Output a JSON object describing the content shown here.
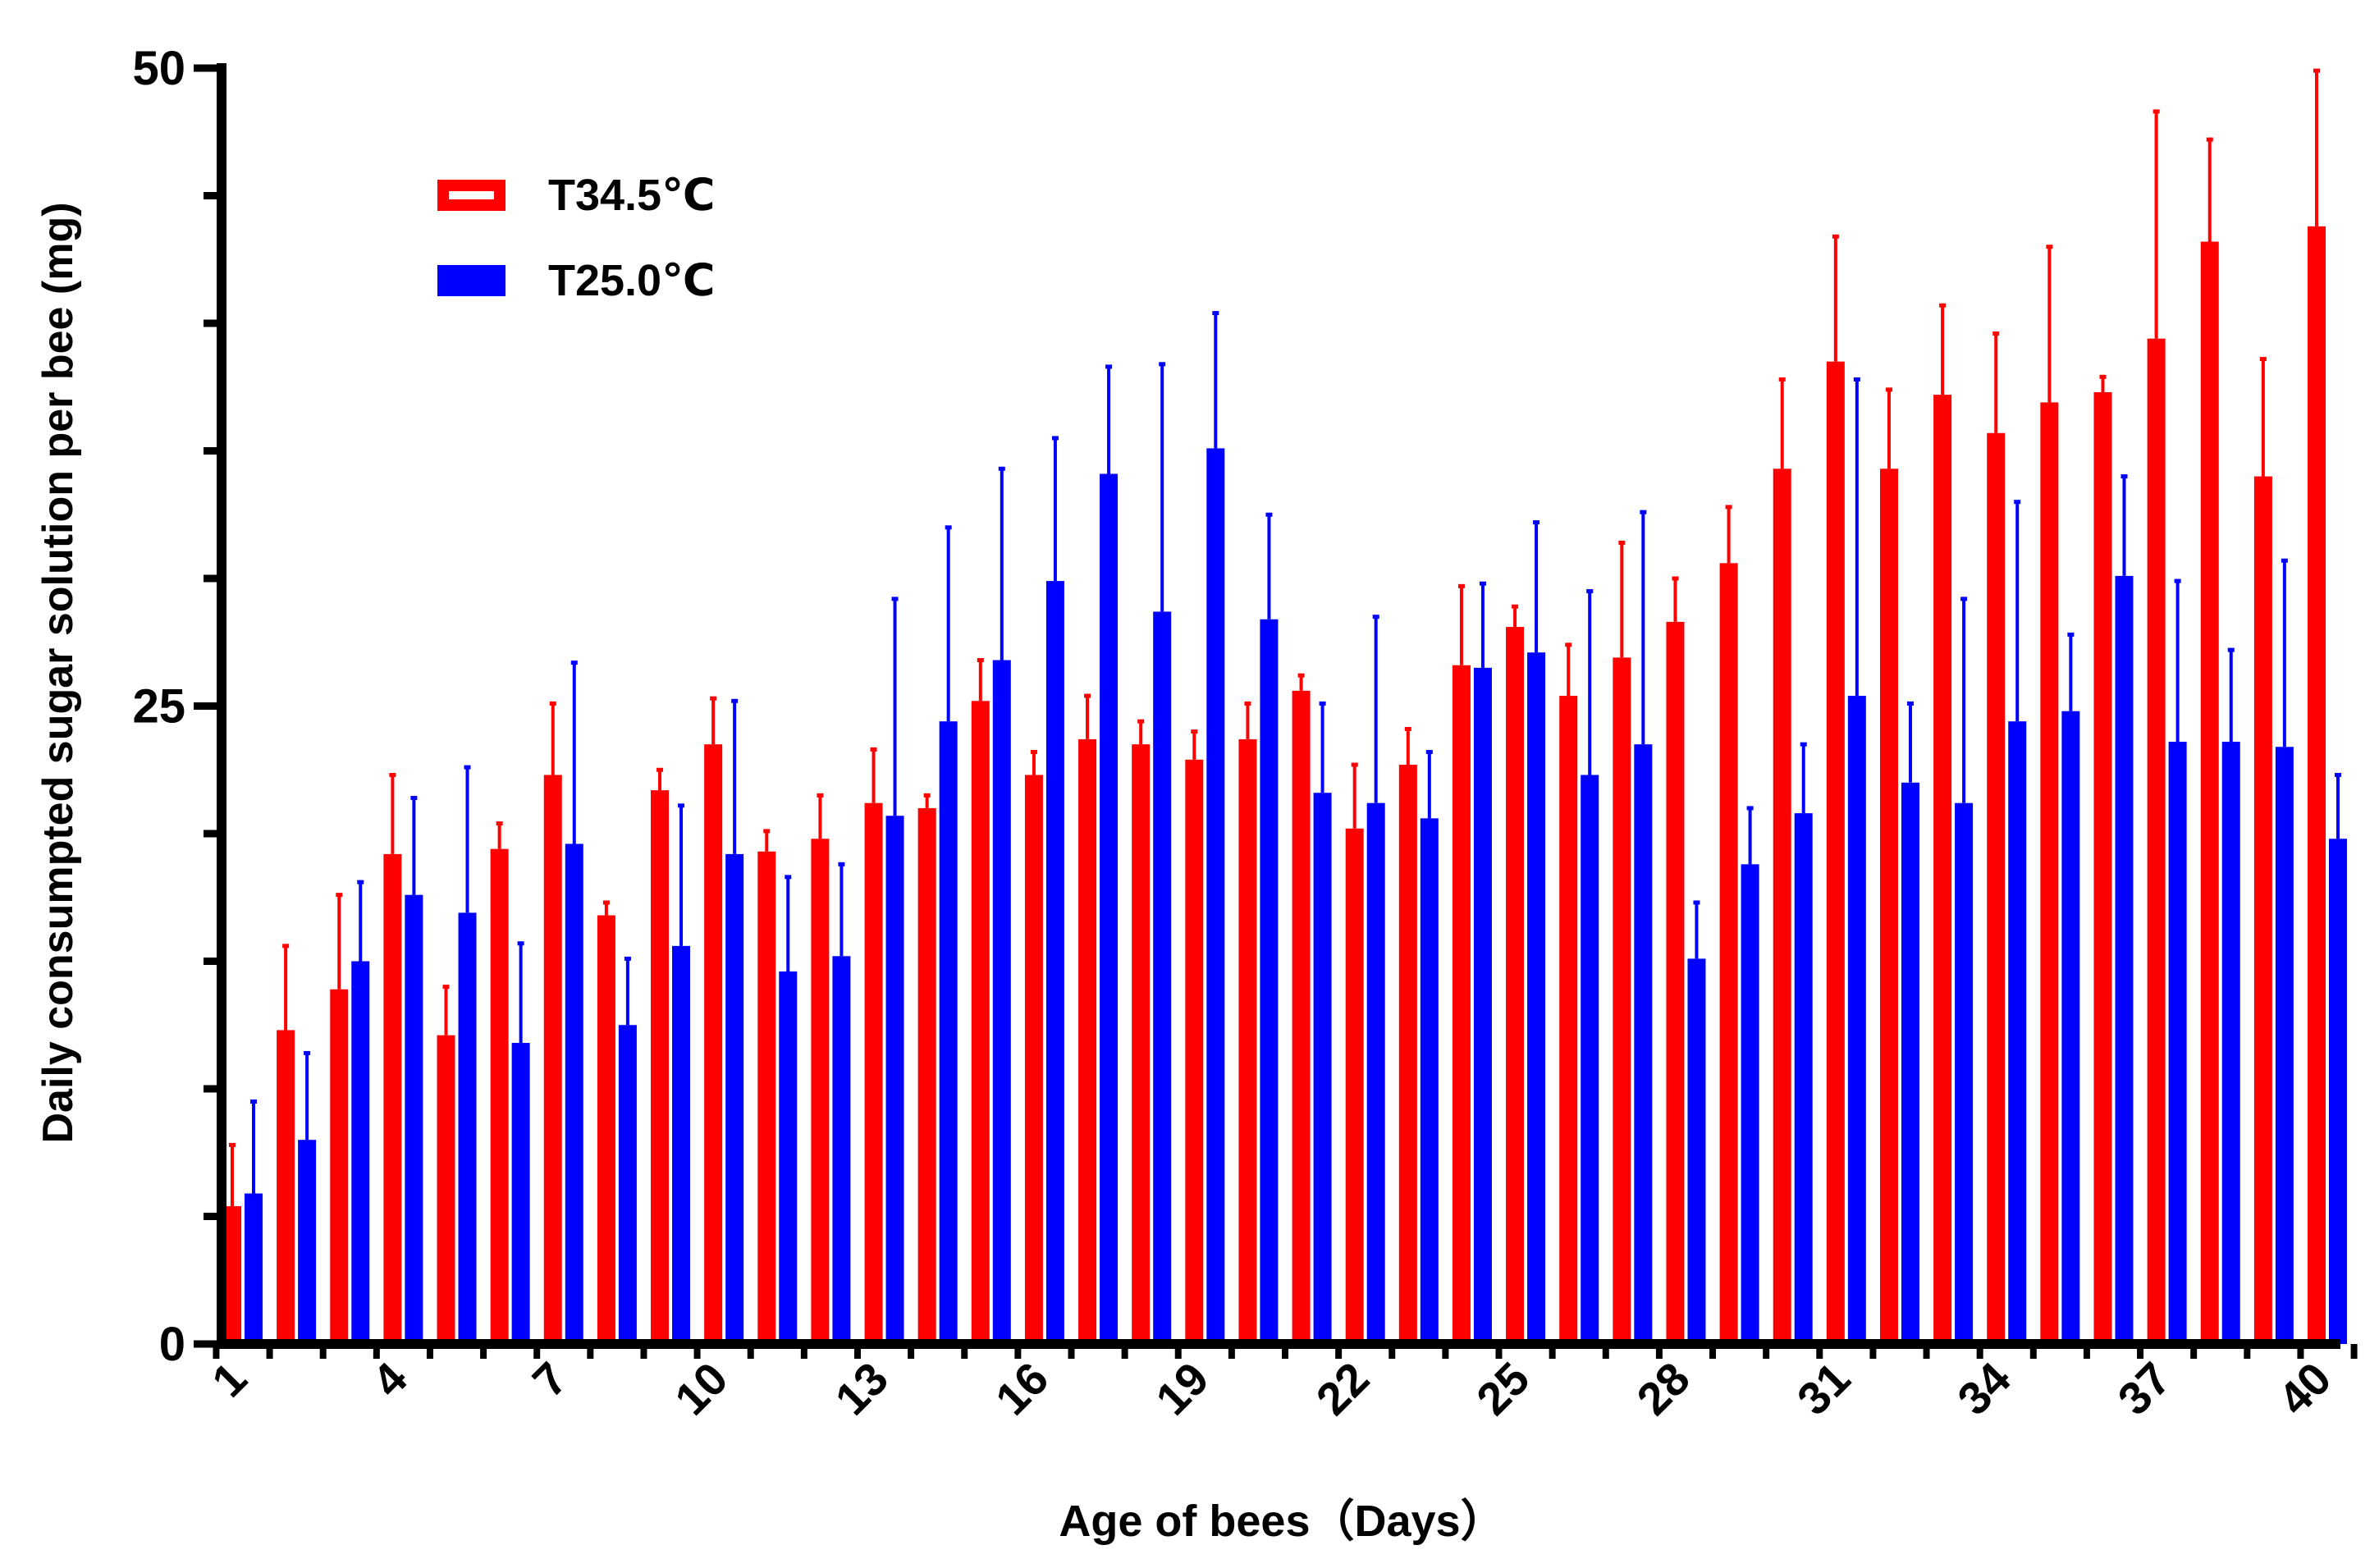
{
  "chart_data": {
    "type": "bar",
    "title": "",
    "xlabel": "Age of bees（Days）",
    "ylabel": "Daily consumpted sugar solution  per bee  (mg)",
    "ylim": [
      0,
      50
    ],
    "yticks": [
      0,
      25,
      50
    ],
    "categories": [
      1,
      2,
      3,
      4,
      5,
      6,
      7,
      8,
      9,
      10,
      11,
      12,
      13,
      14,
      15,
      16,
      17,
      18,
      19,
      20,
      21,
      22,
      23,
      24,
      25,
      26,
      27,
      28,
      29,
      30,
      31,
      32,
      33,
      34,
      35,
      36,
      37,
      38,
      39,
      40
    ],
    "tick_labels": [
      "1",
      "4",
      "7",
      "10",
      "13",
      "16",
      "19",
      "22",
      "25",
      "28",
      "31",
      "34",
      "37",
      "40"
    ],
    "legend_position": "top-left",
    "series": [
      {
        "name": "T34.5℃",
        "color": "#ff0000",
        "values": [
          5.4,
          12.3,
          13.9,
          19.2,
          12.1,
          19.4,
          22.3,
          16.8,
          21.7,
          23.5,
          19.3,
          19.8,
          21.2,
          21.0,
          25.2,
          22.3,
          23.7,
          23.5,
          22.9,
          23.7,
          25.6,
          20.2,
          22.7,
          26.6,
          28.1,
          25.4,
          26.9,
          28.3,
          30.6,
          34.3,
          38.5,
          34.3,
          37.2,
          35.7,
          36.9,
          37.3,
          39.4,
          43.2,
          34.0,
          43.8
        ],
        "errors": [
          2.4,
          3.3,
          3.7,
          3.1,
          1.9,
          1.0,
          2.8,
          0.5,
          0.8,
          1.8,
          0.8,
          1.7,
          2.1,
          0.5,
          1.6,
          0.9,
          1.7,
          0.9,
          1.1,
          1.4,
          0.6,
          2.5,
          1.4,
          3.1,
          0.8,
          2.0,
          4.5,
          1.7,
          2.2,
          3.5,
          4.9,
          3.1,
          3.5,
          3.9,
          6.1,
          0.6,
          8.9,
          4.0,
          4.6,
          6.1
        ]
      },
      {
        "name": "T25.0℃",
        "color": "#0000ff",
        "values": [
          5.9,
          8.0,
          15.0,
          17.6,
          16.9,
          11.8,
          19.6,
          12.5,
          15.6,
          19.2,
          14.6,
          15.2,
          20.7,
          24.4,
          26.8,
          29.9,
          34.1,
          28.7,
          35.1,
          28.4,
          21.6,
          21.2,
          20.6,
          26.5,
          27.1,
          22.3,
          23.5,
          15.1,
          18.8,
          20.8,
          25.4,
          22.0,
          21.2,
          24.4,
          24.8,
          30.1,
          23.6,
          23.6,
          23.4,
          19.8
        ],
        "errors": [
          3.6,
          3.4,
          3.1,
          3.8,
          5.7,
          3.9,
          7.1,
          2.6,
          5.5,
          6.0,
          3.7,
          3.6,
          8.5,
          7.6,
          7.5,
          5.6,
          4.2,
          9.7,
          5.3,
          4.1,
          3.5,
          7.3,
          2.6,
          3.3,
          5.1,
          7.2,
          9.1,
          2.2,
          2.2,
          2.7,
          12.4,
          3.1,
          8.0,
          8.6,
          3.0,
          3.9,
          6.3,
          3.6,
          7.3,
          2.5
        ]
      }
    ]
  }
}
